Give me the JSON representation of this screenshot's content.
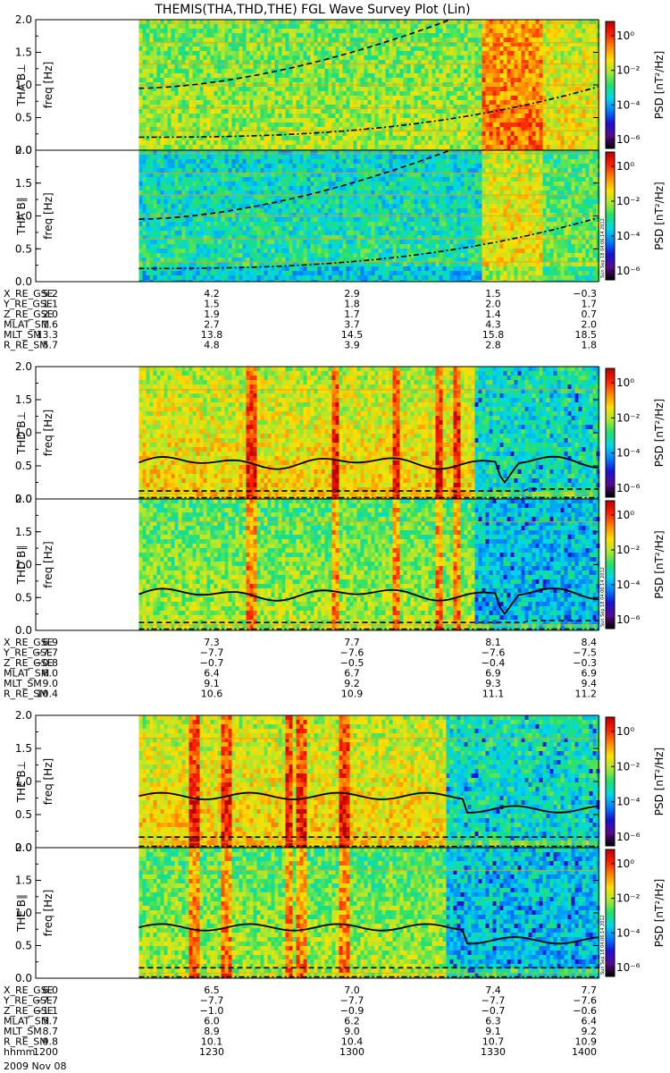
{
  "title": "THEMIS(THA,THD,THE) FGL Wave Survey Plot (Lin)",
  "date_label": "2009 Nov 08",
  "stamp": "Sun Sep 18 04:06:14 2012",
  "colorbar": {
    "label": "PSD [nT²/Hz]",
    "ticks": [
      "10⁰",
      "10⁻²",
      "10⁻⁴",
      "10⁻⁶"
    ],
    "colors": [
      "#000000",
      "#5a0a8c",
      "#1a10d0",
      "#0080ff",
      "#00d8e8",
      "#20e070",
      "#a8e830",
      "#ffe000",
      "#ff8800",
      "#ff2000",
      "#b80000"
    ]
  },
  "chart_data": [
    {
      "type": "heatmap",
      "probe": "THA",
      "panels": [
        {
          "label": "THA B⊥",
          "ylabel": "freq [Hz]",
          "ylim": [
            0,
            2.0
          ],
          "yticks": [
            "2.0",
            "1.5",
            "1.0",
            "0.5",
            "0.0"
          ],
          "data_start_hhmm": 1222,
          "xlim": [
            1200,
            1400
          ]
        },
        {
          "label": "THA B∥",
          "ylabel": "freq [Hz]",
          "ylim": [
            0,
            2.0
          ],
          "yticks": [
            "2.0",
            "1.5",
            "1.0",
            "0.5",
            "0.0"
          ],
          "data_start_hhmm": 1222,
          "xlim": [
            1200,
            1400
          ]
        }
      ],
      "ephemeris": {
        "rows": [
          {
            "name": "X_RE_GSE",
            "values": [
              "5.2",
              "4.2",
              "2.9",
              "1.5",
              "−0.3"
            ]
          },
          {
            "name": "Y_RE_GSE",
            "values": [
              "1.1",
              "1.5",
              "1.8",
              "2.0",
              "1.7"
            ]
          },
          {
            "name": "Z_RE_GSE",
            "values": [
              "2.0",
              "1.9",
              "1.7",
              "1.4",
              "0.7"
            ]
          },
          {
            "name": "MLAT_SM",
            "values": [
              "1.6",
              "2.7",
              "3.7",
              "4.3",
              "2.0"
            ]
          },
          {
            "name": "MLT_SM",
            "values": [
              "13.3",
              "13.8",
              "14.5",
              "15.8",
              "18.5"
            ]
          },
          {
            "name": "R_RE_SM",
            "values": [
              "5.7",
              "4.8",
              "3.9",
              "2.8",
              "1.8"
            ]
          }
        ]
      }
    },
    {
      "type": "heatmap",
      "probe": "THD",
      "panels": [
        {
          "label": "THD B⊥",
          "ylabel": "freq [Hz]",
          "ylim": [
            0,
            2.0
          ],
          "yticks": [
            "2.0",
            "1.5",
            "1.0",
            "0.5",
            "0.0"
          ],
          "data_start_hhmm": 1222,
          "xlim": [
            1200,
            1400
          ]
        },
        {
          "label": "THD B∥",
          "ylabel": "freq [Hz]",
          "ylim": [
            0,
            2.0
          ],
          "yticks": [
            "2.0",
            "1.5",
            "1.0",
            "0.5",
            "0.0"
          ],
          "data_start_hhmm": 1222,
          "xlim": [
            1200,
            1400
          ]
        }
      ],
      "ephemeris": {
        "rows": [
          {
            "name": "X_RE_GSE",
            "values": [
              "6.9",
              "7.3",
              "7.7",
              "8.1",
              "8.4"
            ]
          },
          {
            "name": "Y_RE_GSE",
            "values": [
              "−7.7",
              "−7.7",
              "−7.6",
              "−7.6",
              "−7.5"
            ]
          },
          {
            "name": "Z_RE_GSE",
            "values": [
              "−0.8",
              "−0.7",
              "−0.5",
              "−0.4",
              "−0.3"
            ]
          },
          {
            "name": "MLAT_SM",
            "values": [
              "6.0",
              "6.4",
              "6.7",
              "6.9",
              "6.9"
            ]
          },
          {
            "name": "MLT_SM",
            "values": [
              "9.0",
              "9.1",
              "9.2",
              "9.3",
              "9.4"
            ]
          },
          {
            "name": "R_RE_SM",
            "values": [
              "10.4",
              "10.6",
              "10.9",
              "11.1",
              "11.2"
            ]
          }
        ]
      }
    },
    {
      "type": "heatmap",
      "probe": "THE",
      "panels": [
        {
          "label": "THE B⊥",
          "ylabel": "freq [Hz]",
          "ylim": [
            0,
            2.0
          ],
          "yticks": [
            "2.0",
            "1.5",
            "1.0",
            "0.5",
            "0.0"
          ],
          "data_start_hhmm": 1222,
          "xlim": [
            1200,
            1400
          ]
        },
        {
          "label": "THE B∥",
          "ylabel": "freq [Hz]",
          "ylim": [
            0,
            2.0
          ],
          "yticks": [
            "2.0",
            "1.5",
            "1.0",
            "0.5",
            "0.0"
          ],
          "data_start_hhmm": 1222,
          "xlim": [
            1200,
            1400
          ]
        }
      ],
      "ephemeris": {
        "rows": [
          {
            "name": "X_RE_GSE",
            "values": [
              "6.0",
              "6.5",
              "7.0",
              "7.4",
              "7.7"
            ]
          },
          {
            "name": "Y_RE_GSE",
            "values": [
              "−7.7",
              "−7.7",
              "−7.7",
              "−7.7",
              "−7.6"
            ]
          },
          {
            "name": "Z_RE_GSE",
            "values": [
              "−1.1",
              "−1.0",
              "−0.9",
              "−0.7",
              "−0.6"
            ]
          },
          {
            "name": "MLAT_SM",
            "values": [
              "5.7",
              "6.0",
              "6.2",
              "6.3",
              "6.4"
            ]
          },
          {
            "name": "MLT_SM",
            "values": [
              "8.7",
              "8.9",
              "9.0",
              "9.1",
              "9.2"
            ]
          },
          {
            "name": "R_RE_SM",
            "values": [
              "9.8",
              "10.1",
              "10.4",
              "10.7",
              "10.9"
            ]
          },
          {
            "name": "hhmm",
            "values": [
              "1200",
              "1230",
              "1300",
              "1330",
              "1400"
            ]
          }
        ]
      }
    }
  ]
}
